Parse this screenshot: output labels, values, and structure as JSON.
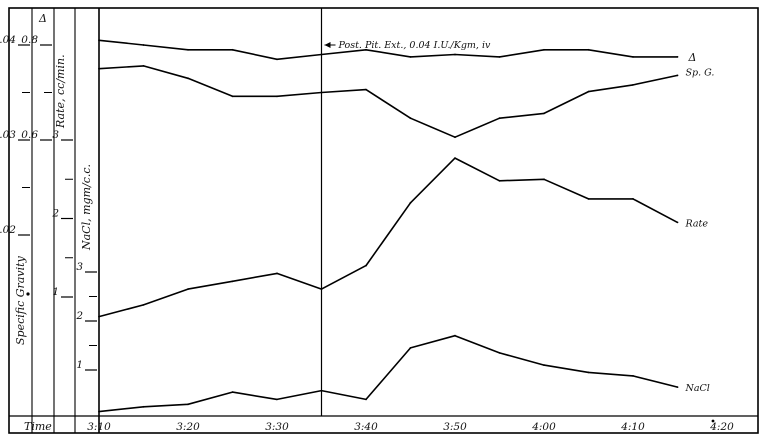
{
  "chart_data": {
    "type": "line",
    "x_label": "Time",
    "x_ticks": [
      "3:10",
      "3:20",
      "3:30",
      "3:40",
      "3:50",
      "4:00",
      "4:10",
      "4:20"
    ],
    "x_minutes": [
      0,
      5,
      10,
      15,
      20,
      25,
      30,
      35,
      40,
      45,
      50,
      55,
      60,
      65
    ],
    "event": {
      "time": "3:35",
      "label": "Post. Pit. Ext., 0.04 I.U./Kgm, iv"
    },
    "axes": [
      {
        "title": "Specific Gravity",
        "ticks": [
          {
            "label": "1.04",
            "value": 1.04
          },
          {
            "label": "1.03",
            "value": 1.03
          },
          {
            "label": "1.02",
            "value": 1.02
          }
        ]
      },
      {
        "title": "Δ",
        "ticks": [
          {
            "label": "0.8",
            "value": 0.8
          },
          {
            "label": "0.6",
            "value": 0.6
          }
        ]
      },
      {
        "title": "Rate, cc/min.",
        "ticks": [
          {
            "label": "3",
            "value": 3
          },
          {
            "label": "2",
            "value": 2
          },
          {
            "label": "1",
            "value": 1
          }
        ]
      },
      {
        "title": "NaCl, mgm/c.c.",
        "ticks": [
          {
            "label": "3",
            "value": 3
          },
          {
            "label": "2",
            "value": 2
          },
          {
            "label": "1",
            "value": 1
          }
        ]
      }
    ],
    "series": [
      {
        "name": "Δ",
        "axis": "Δ",
        "values": [
          0.81,
          0.8,
          0.79,
          0.79,
          0.77,
          0.78,
          0.79,
          0.775,
          0.78,
          0.775,
          0.79,
          0.79,
          0.775,
          0.775
        ]
      },
      {
        "name": "Sp. G.",
        "axis": "Specific Gravity",
        "values": [
          1.0375,
          1.0378,
          1.0365,
          1.0346,
          1.0346,
          1.035,
          1.0353,
          1.0323,
          1.0303,
          1.0323,
          1.0328,
          1.0351,
          1.0358,
          1.0368
        ]
      },
      {
        "name": "Rate",
        "axis": "Rate, cc/min.",
        "values": [
          0.75,
          0.9,
          1.1,
          1.2,
          1.3,
          1.1,
          1.4,
          2.2,
          2.77,
          2.48,
          2.5,
          2.25,
          2.25,
          1.95
        ]
      },
      {
        "name": "NaCl",
        "axis": "NaCl, mgm/c.c.",
        "values": [
          0.15,
          0.25,
          0.3,
          0.55,
          0.4,
          0.58,
          0.4,
          1.45,
          1.7,
          1.35,
          1.1,
          0.95,
          0.88,
          0.65
        ]
      }
    ]
  }
}
